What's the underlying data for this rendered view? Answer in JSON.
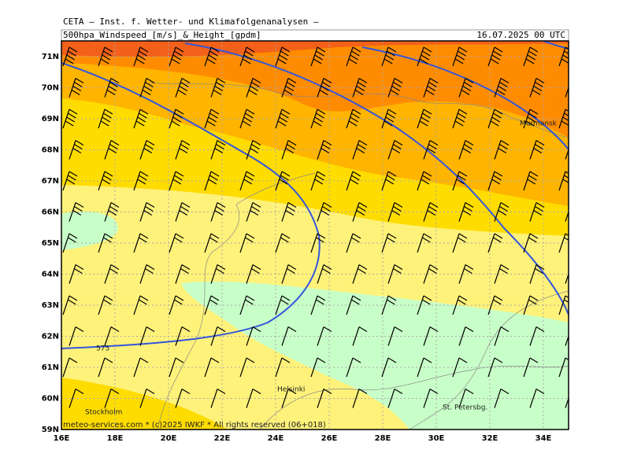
{
  "header": {
    "title": "CETA — Inst. f. Wetter- und Klimafolgenanalysen —",
    "subtitle": "500hpa_Windspeed_[m/s]_&_Height_[gpdm]",
    "date": "16.07.2025 00 UTC"
  },
  "map": {
    "lat_labels": [
      "71N",
      "70N",
      "69N",
      "68N",
      "67N",
      "66N",
      "65N",
      "64N",
      "63N",
      "62N",
      "61N",
      "60N",
      "59N"
    ],
    "lon_labels": [
      "16E",
      "18E",
      "20E",
      "22E",
      "24E",
      "26E",
      "28E",
      "30E",
      "32E",
      "34E"
    ],
    "cities": [
      "Murmansk",
      "Helsinki",
      "Stockholm",
      "St. Petersbg."
    ],
    "contour_label": "575"
  },
  "footer": {
    "credit": "meteo-services.com * (c)2025 IWKF * All rights reserved (06+018)"
  }
}
